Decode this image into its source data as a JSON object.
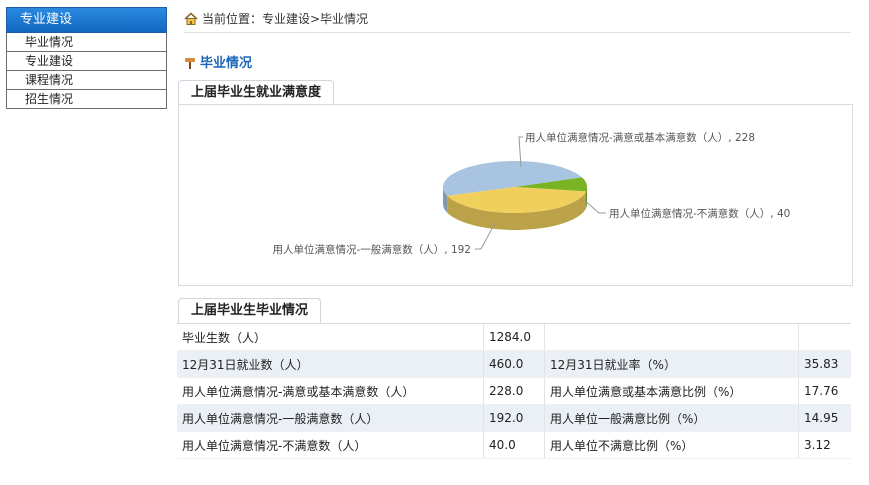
{
  "sidebar": {
    "header": "专业建设",
    "items": [
      {
        "label": "毕业情况"
      },
      {
        "label": "专业建设"
      },
      {
        "label": "课程情况"
      },
      {
        "label": "招生情况"
      }
    ]
  },
  "breadcrumb": {
    "text": "当前位置：专业建设>毕业情况"
  },
  "section": {
    "title": "毕业情况"
  },
  "chart_panel": {
    "tab": "上届毕业生就业满意度"
  },
  "chart_data": {
    "type": "pie",
    "title": "",
    "slices": [
      {
        "label": "用人单位满意情况-满意或基本满意数（人）, 228",
        "value": 228,
        "color": "#a9c4e0"
      },
      {
        "label": "用人单位满意情况-不满意数（人）, 40",
        "value": 40,
        "color": "#78b424"
      },
      {
        "label": "用人单位满意情况-一般满意数（人）, 192",
        "value": 192,
        "color": "#f0cf5c"
      }
    ]
  },
  "table_panel": {
    "tab": "上届毕业生毕业情况",
    "rows": [
      {
        "c1": "毕业生数（人）",
        "c2": "1284.0",
        "c3": "",
        "c4": ""
      },
      {
        "c1": "12月31日就业数（人）",
        "c2": "460.0",
        "c3": "12月31日就业率（%）",
        "c4": "35.83"
      },
      {
        "c1": "用人单位满意情况-满意或基本满意数（人）",
        "c2": "228.0",
        "c3": "用人单位满意或基本满意比例（%）",
        "c4": "17.76"
      },
      {
        "c1": "用人单位满意情况-一般满意数（人）",
        "c2": "192.0",
        "c3": "用人单位一般满意比例（%）",
        "c4": "14.95"
      },
      {
        "c1": "用人单位满意情况-不满意数（人）",
        "c2": "40.0",
        "c3": "用人单位不满意比例（%）",
        "c4": "3.12"
      }
    ]
  }
}
